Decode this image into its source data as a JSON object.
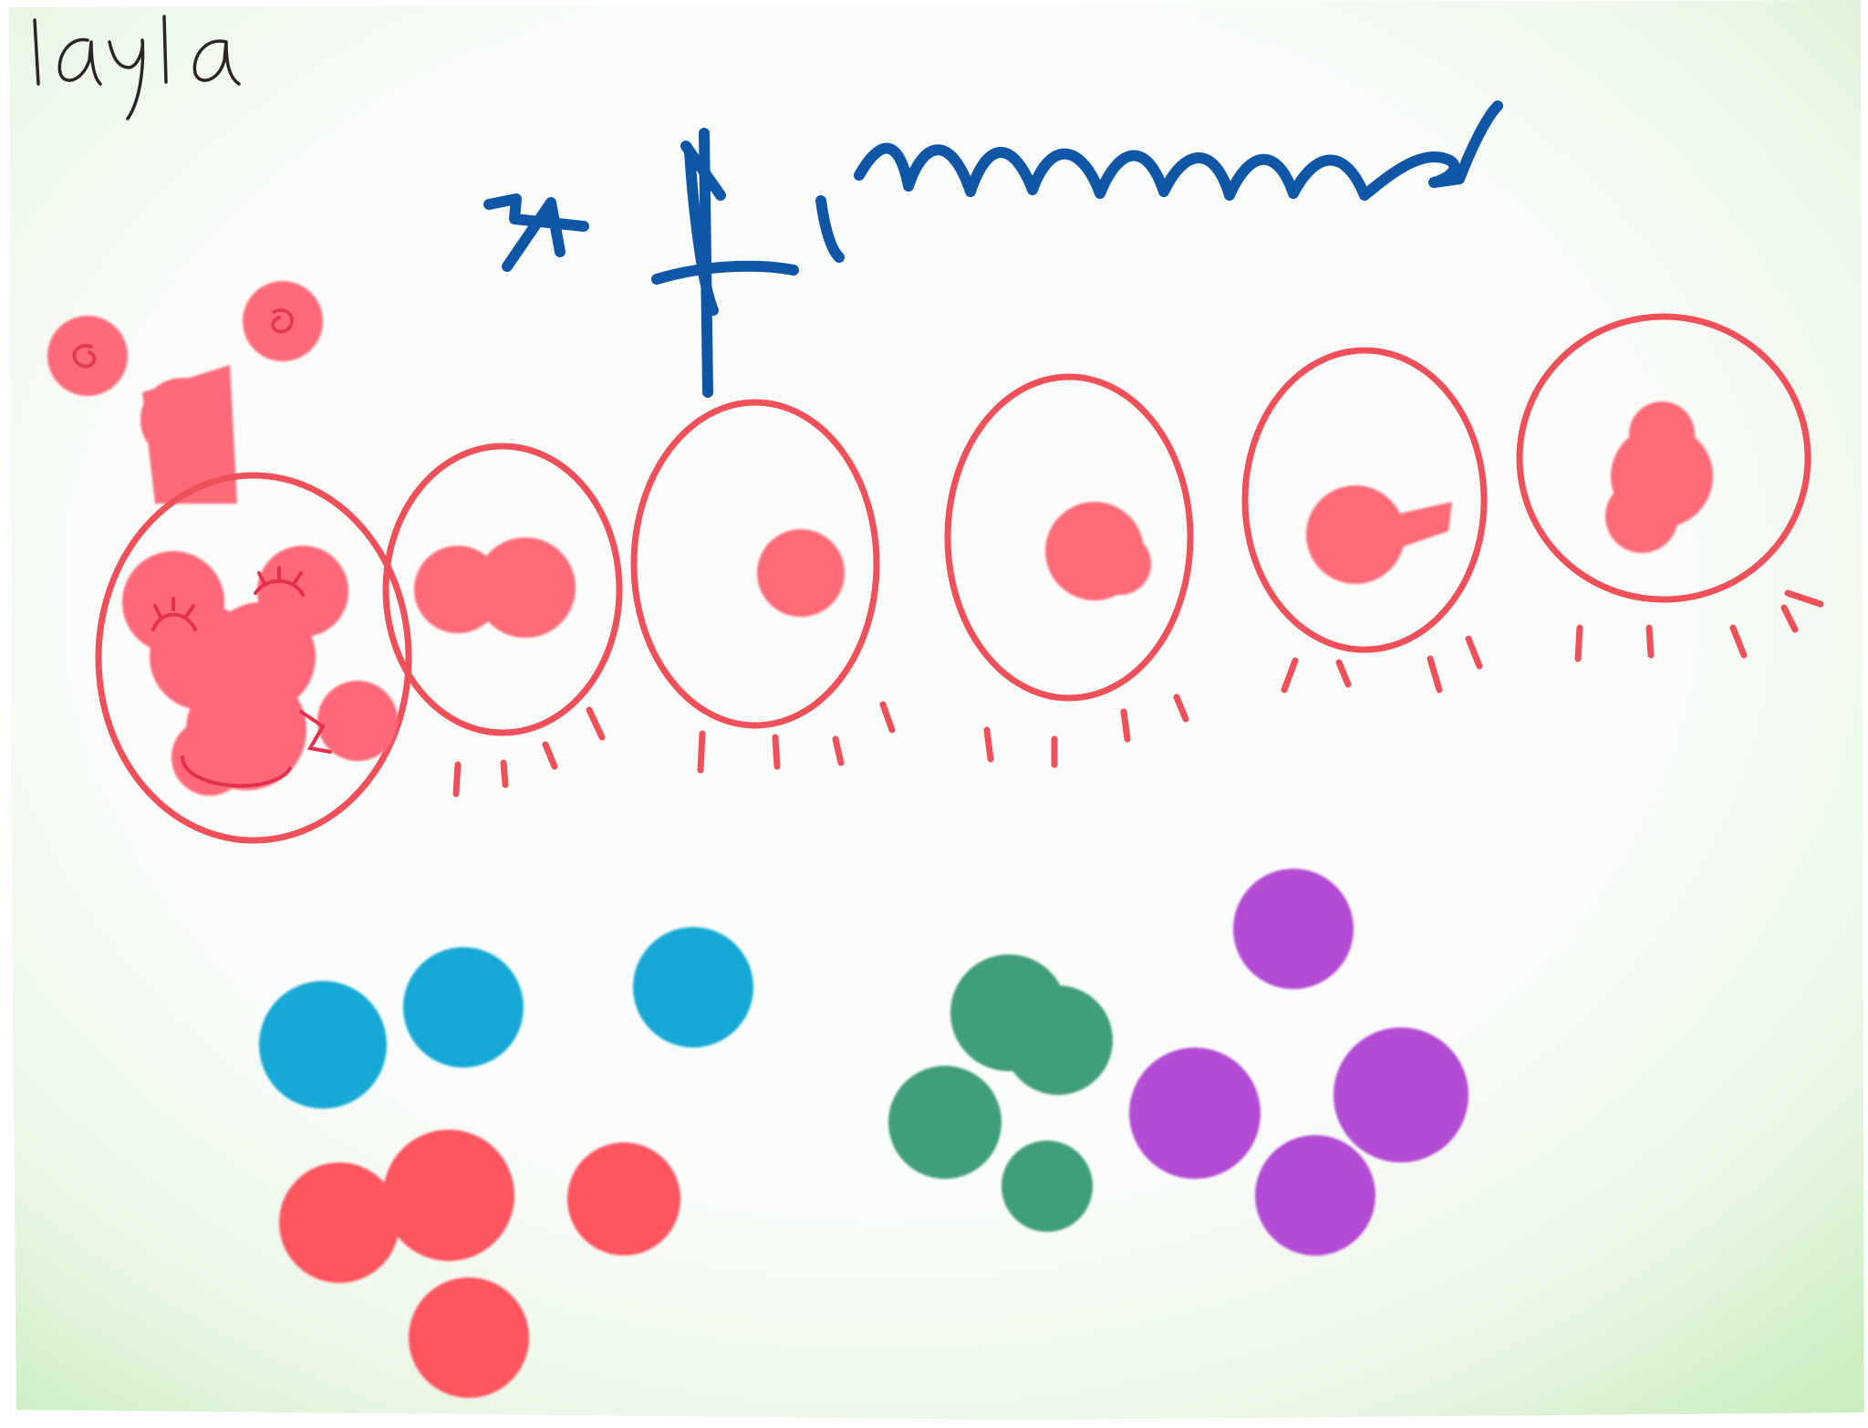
{
  "artwork": {
    "signature": "layla",
    "colors": {
      "paper": "#f7faf6",
      "paper_edge_green": "#cdeec2",
      "caterpillar_red": "#f0505a",
      "dot_pink": "#ff6a78",
      "headline_blue": "#0f56a6",
      "signature_ink": "#2b2626",
      "dot_blue": "#14a9d6",
      "dot_green": "#3f9f78",
      "dot_purple": "#b34bd4",
      "dot_red": "#ff5461"
    },
    "icons": [
      "caterpillar-icon"
    ]
  }
}
